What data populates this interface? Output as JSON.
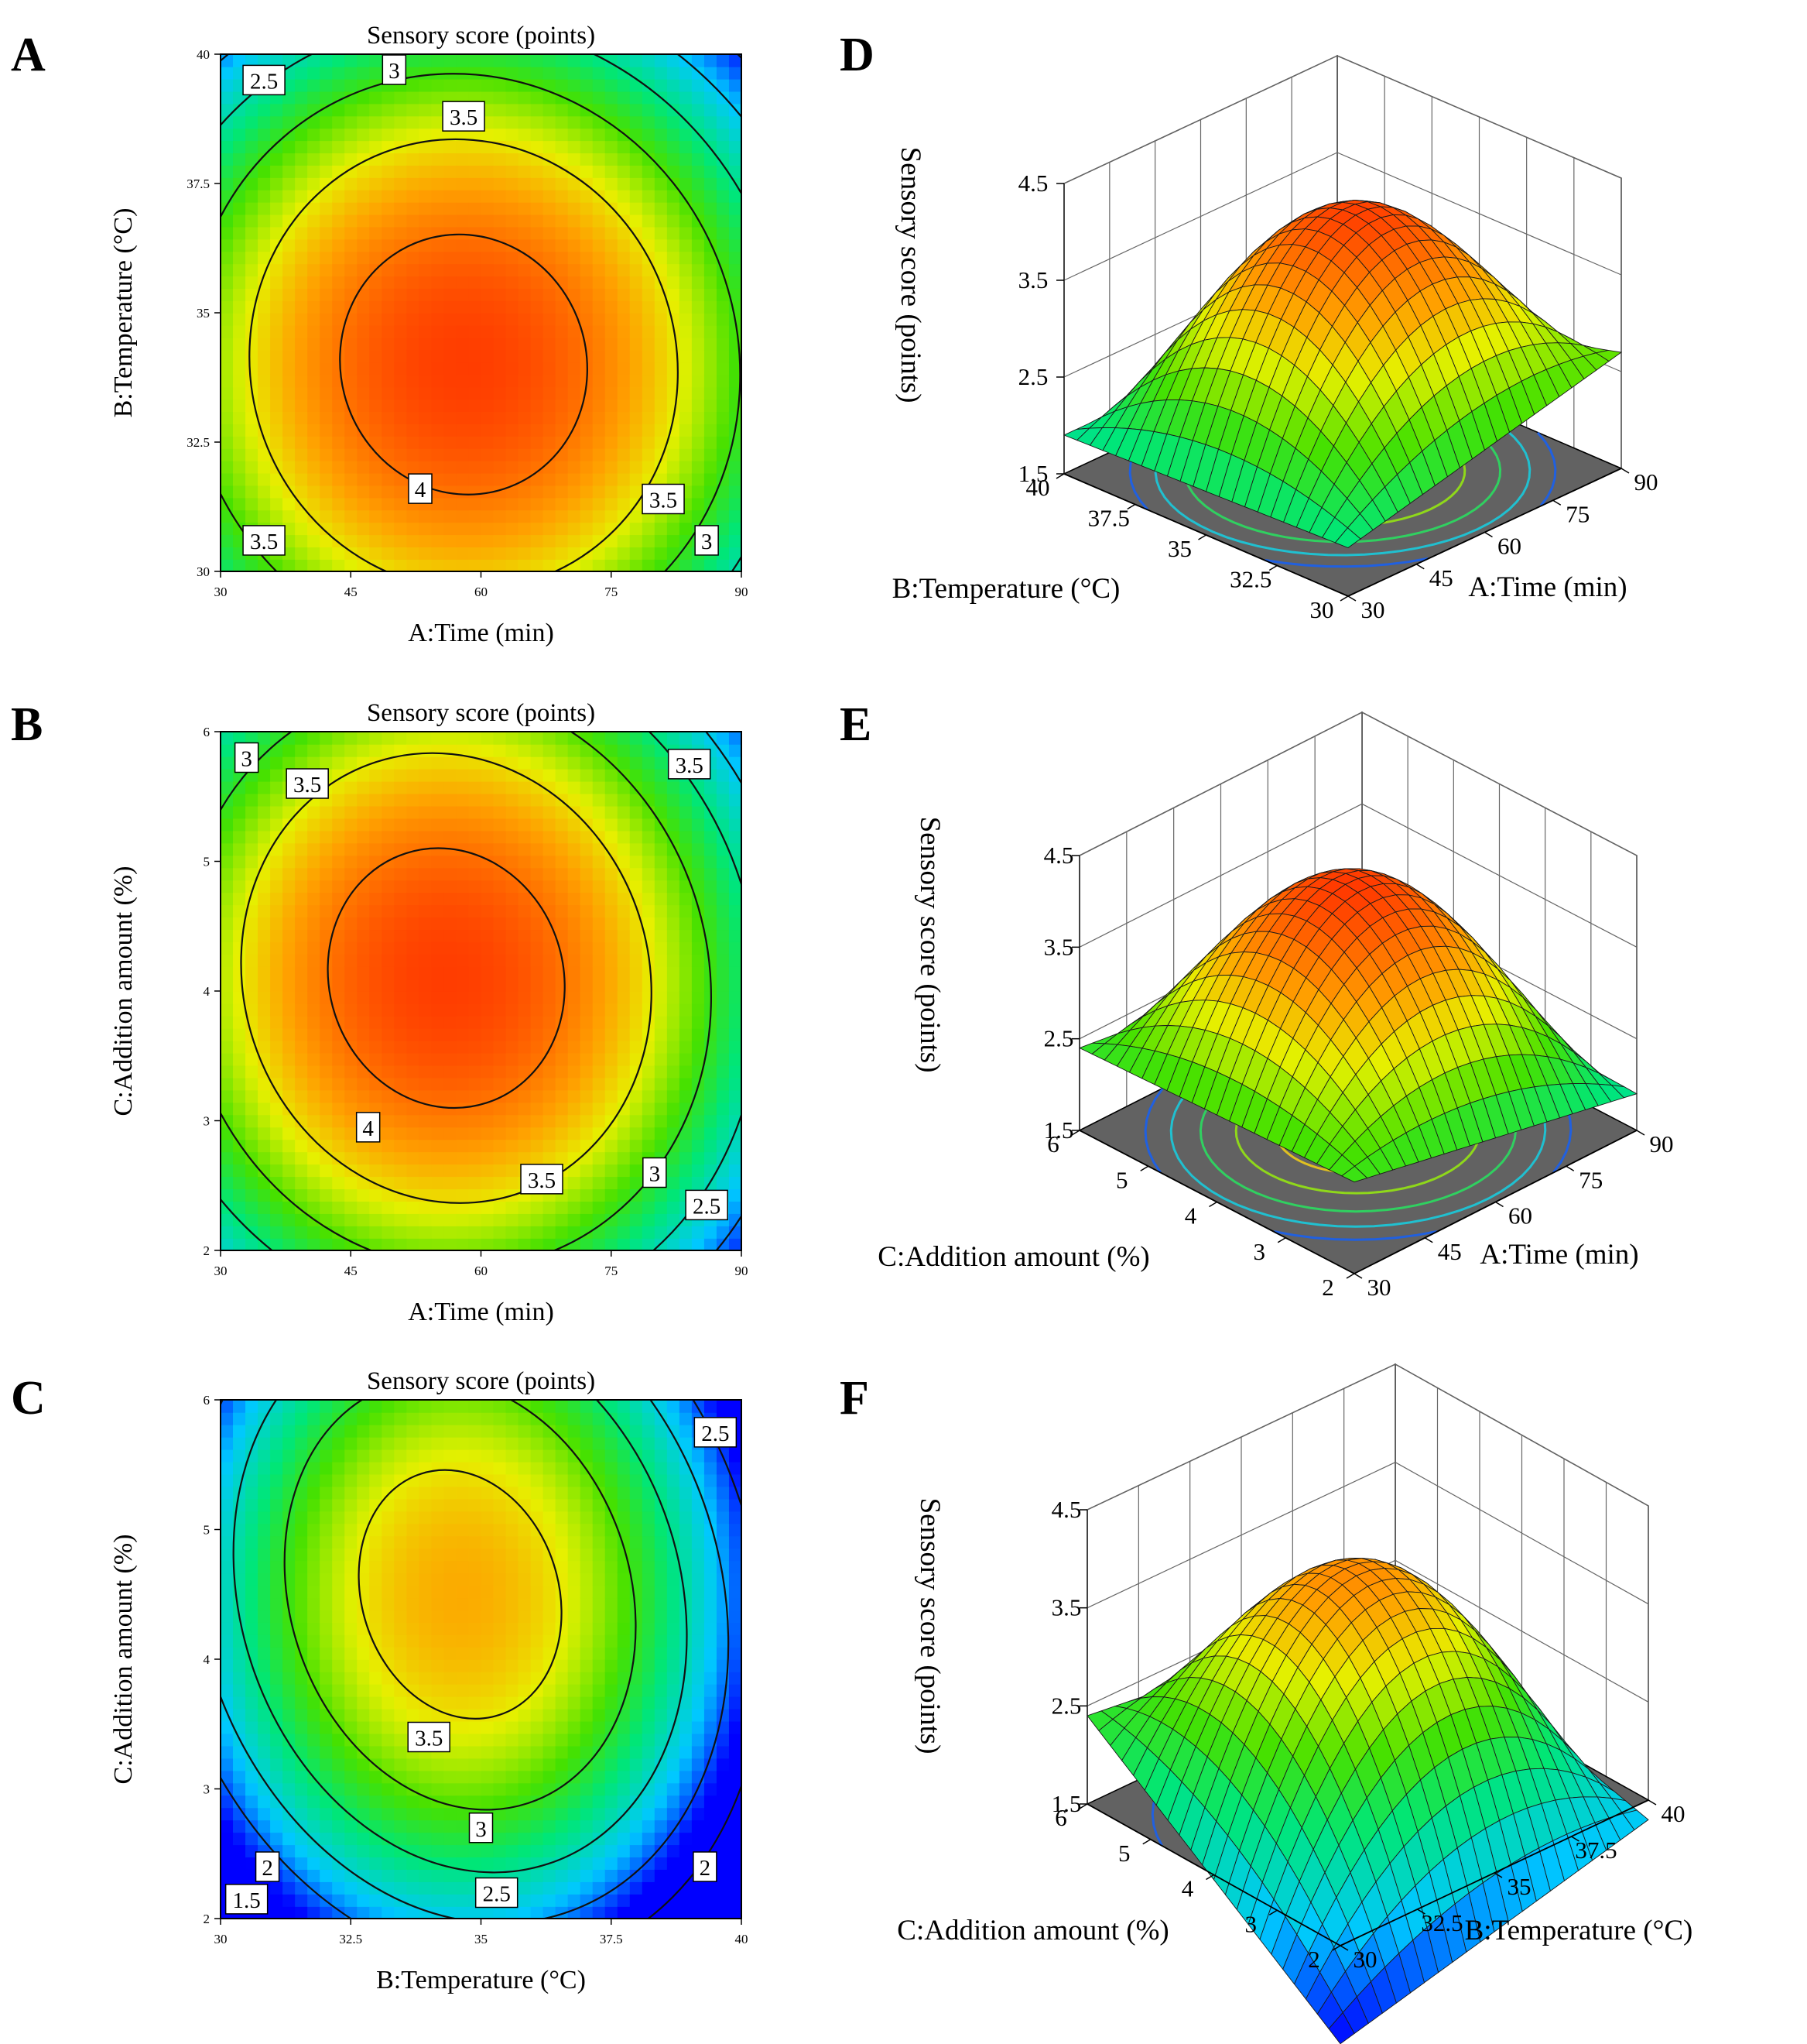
{
  "panels": [
    "A",
    "B",
    "C",
    "D",
    "E",
    "F"
  ],
  "chart_data": [
    {
      "id": "A",
      "type": "heatmap",
      "subtype": "contour",
      "title": "Sensory score (points)",
      "xlabel": "A:Time (min)",
      "ylabel": "B:Temperature (°C)",
      "xlim": [
        30,
        90
      ],
      "ylim": [
        30,
        40
      ],
      "xticks": [
        "30",
        "45",
        "60",
        "75",
        "90"
      ],
      "yticks": [
        "30",
        "32.5",
        "35",
        "37.5",
        "40"
      ],
      "zrange": [
        1.5,
        4.3
      ],
      "model": {
        "x0": 58,
        "y0": 34,
        "ax": 42,
        "by": 7.5,
        "c": 4.25,
        "k": 2.2
      },
      "contours": [
        {
          "level": "2.5",
          "x": 35,
          "y": 39.5
        },
        {
          "level": "3",
          "x": 50,
          "y": 39.7
        },
        {
          "level": "3.5",
          "x": 58,
          "y": 38.8
        },
        {
          "level": "4",
          "x": 53,
          "y": 31.6
        },
        {
          "level": "3.5",
          "x": 35,
          "y": 30.6
        },
        {
          "level": "3.5",
          "x": 81,
          "y": 31.4
        },
        {
          "level": "3",
          "x": 86,
          "y": 30.6
        }
      ]
    },
    {
      "id": "B",
      "type": "heatmap",
      "subtype": "contour",
      "title": "Sensory score (points)",
      "xlabel": "A:Time (min)",
      "ylabel": "C:Addition amount (%)",
      "xlim": [
        30,
        90
      ],
      "ylim": [
        2,
        6
      ],
      "xticks": [
        "30",
        "45",
        "60",
        "75",
        "90"
      ],
      "yticks": [
        "2",
        "3",
        "4",
        "5",
        "6"
      ],
      "zrange": [
        1.5,
        4.3
      ],
      "model": {
        "x0": 56,
        "y0": 4.1,
        "ax": 40,
        "by": 3.0,
        "c": 4.25,
        "k": 2.2
      },
      "contours": [
        {
          "level": "3",
          "x": 33,
          "y": 5.8
        },
        {
          "level": "3.5",
          "x": 40,
          "y": 5.6
        },
        {
          "level": "3.5",
          "x": 84,
          "y": 5.75
        },
        {
          "level": "4",
          "x": 47,
          "y": 2.95
        },
        {
          "level": "3.5",
          "x": 67,
          "y": 2.55
        },
        {
          "level": "3",
          "x": 80,
          "y": 2.6
        },
        {
          "level": "2.5",
          "x": 86,
          "y": 2.35
        }
      ]
    },
    {
      "id": "C",
      "type": "heatmap",
      "subtype": "contour",
      "title": "Sensory score (points)",
      "xlabel": "B:Temperature (°C)",
      "ylabel": "C:Addition amount (%)",
      "xlim": [
        30,
        40
      ],
      "ylim": [
        2,
        6
      ],
      "xticks": [
        "30",
        "32.5",
        "35",
        "37.5",
        "40"
      ],
      "yticks": [
        "2",
        "3",
        "4",
        "5",
        "6"
      ],
      "zrange": [
        1.5,
        4.3
      ],
      "model": {
        "x0": 34.6,
        "y0": 4.5,
        "ax": 5.6,
        "by": 2.9,
        "c": 3.75,
        "k": 2.2
      },
      "contours": [
        {
          "level": "2.5",
          "x": 39.5,
          "y": 5.75
        },
        {
          "level": "3.5",
          "x": 34,
          "y": 3.4
        },
        {
          "level": "3",
          "x": 35,
          "y": 2.7
        },
        {
          "level": "2.5",
          "x": 35.3,
          "y": 2.2
        },
        {
          "level": "2",
          "x": 30.9,
          "y": 2.4
        },
        {
          "level": "2",
          "x": 39.3,
          "y": 2.4
        },
        {
          "level": "1.5",
          "x": 30.5,
          "y": 2.15
        }
      ]
    },
    {
      "id": "D",
      "type": "surface",
      "zlabel": "Sensory score (points)",
      "zticks": [
        "1.5",
        "2.5",
        "3.5",
        "4.5"
      ],
      "xlabel": "A:Time (min)",
      "ylabel": "B:Temperature (°C)",
      "xticks": [
        "30",
        "45",
        "60",
        "75",
        "90"
      ],
      "yticks": [
        "30",
        "32.5",
        "35",
        "37.5",
        "40"
      ],
      "zlim": [
        1.5,
        4.5
      ],
      "corners": {
        "front": 2.0,
        "left": 1.9,
        "right": 2.7,
        "back": 1.9
      },
      "peak": 4.2
    },
    {
      "id": "E",
      "type": "surface",
      "zlabel": "Sensory score (points)",
      "zticks": [
        "1.5",
        "2.5",
        "3.5",
        "4.5"
      ],
      "xlabel": "A:Time (min)",
      "ylabel": "C:Addition amount (%)",
      "xticks": [
        "30",
        "45",
        "60",
        "75",
        "90"
      ],
      "yticks": [
        "2",
        "3",
        "4",
        "5",
        "6"
      ],
      "zlim": [
        1.5,
        4.5
      ],
      "corners": {
        "front": 2.5,
        "left": 2.4,
        "right": 1.9,
        "back": 2.0
      },
      "peak": 4.25
    },
    {
      "id": "F",
      "type": "surface",
      "zlabel": "Sensory score (points)",
      "zticks": [
        "1.5",
        "2.5",
        "3.5",
        "4.5"
      ],
      "xlabel": "B:Temperature (°C)",
      "ylabel": "C:Addition amount (%)",
      "xticks": [
        "30",
        "32.5",
        "35",
        "37.5",
        "40"
      ],
      "yticks": [
        "2",
        "3",
        "4",
        "5",
        "6"
      ],
      "zlim": [
        1.5,
        4.5
      ],
      "corners": {
        "front": 0.5,
        "left": 2.4,
        "right": 1.3,
        "back": 2.0
      },
      "peak": 3.7
    }
  ]
}
